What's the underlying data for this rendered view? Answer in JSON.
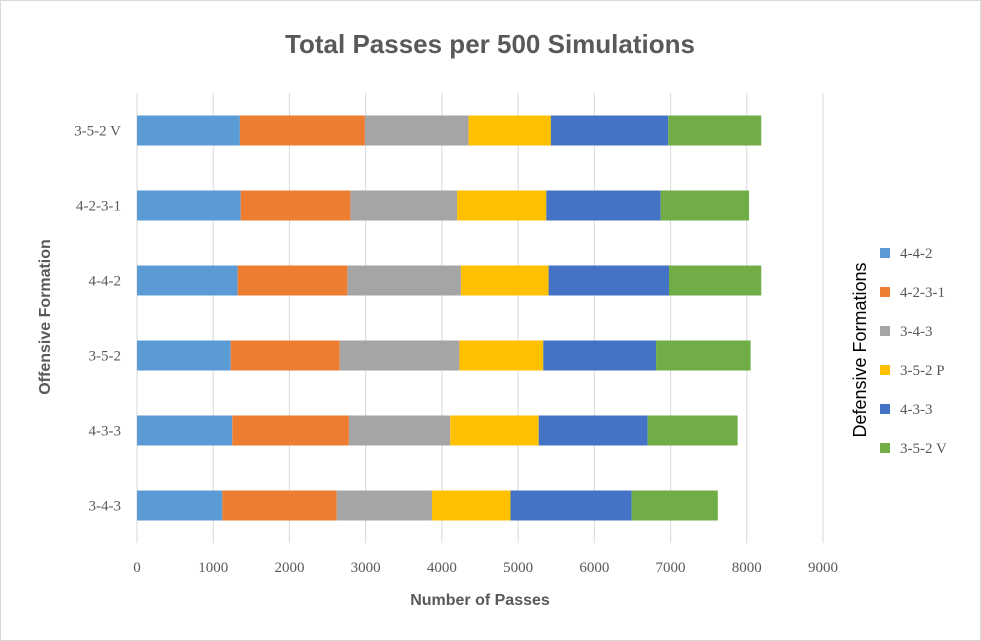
{
  "chart_data": {
    "type": "bar",
    "orientation": "horizontal",
    "stacked": true,
    "title": "Total Passes per 500 Simulations",
    "xlabel": "Number of Passes",
    "ylabel": "Offensive Formation",
    "xlim": [
      0,
      9000
    ],
    "xticks": [
      0,
      1000,
      2000,
      3000,
      4000,
      5000,
      6000,
      7000,
      8000,
      9000
    ],
    "grid": "vertical",
    "legend_title": "Defensive Formations",
    "legend_position": "right",
    "categories": [
      "3-4-3",
      "4-3-3",
      "3-5-2",
      "4-4-2",
      "4-2-3-1",
      "3-5-2 V"
    ],
    "series": [
      {
        "name": "4-4-2",
        "color": "#5b9bd5",
        "values": [
          1120,
          1250,
          1230,
          1320,
          1360,
          1350
        ]
      },
      {
        "name": "4-2-3-1",
        "color": "#ed7d31",
        "values": [
          1500,
          1530,
          1430,
          1440,
          1440,
          1640
        ]
      },
      {
        "name": "3-4-3",
        "color": "#a5a5a5",
        "values": [
          1250,
          1330,
          1570,
          1490,
          1400,
          1360
        ]
      },
      {
        "name": "3-5-2 P",
        "color": "#ffc000",
        "values": [
          1030,
          1160,
          1100,
          1150,
          1170,
          1080
        ]
      },
      {
        "name": "4-3-3",
        "color": "#4472c4",
        "values": [
          1590,
          1430,
          1480,
          1580,
          1500,
          1540
        ]
      },
      {
        "name": "3-5-2 V",
        "color": "#70ad47",
        "values": [
          1130,
          1180,
          1240,
          1210,
          1160,
          1220
        ]
      }
    ]
  }
}
